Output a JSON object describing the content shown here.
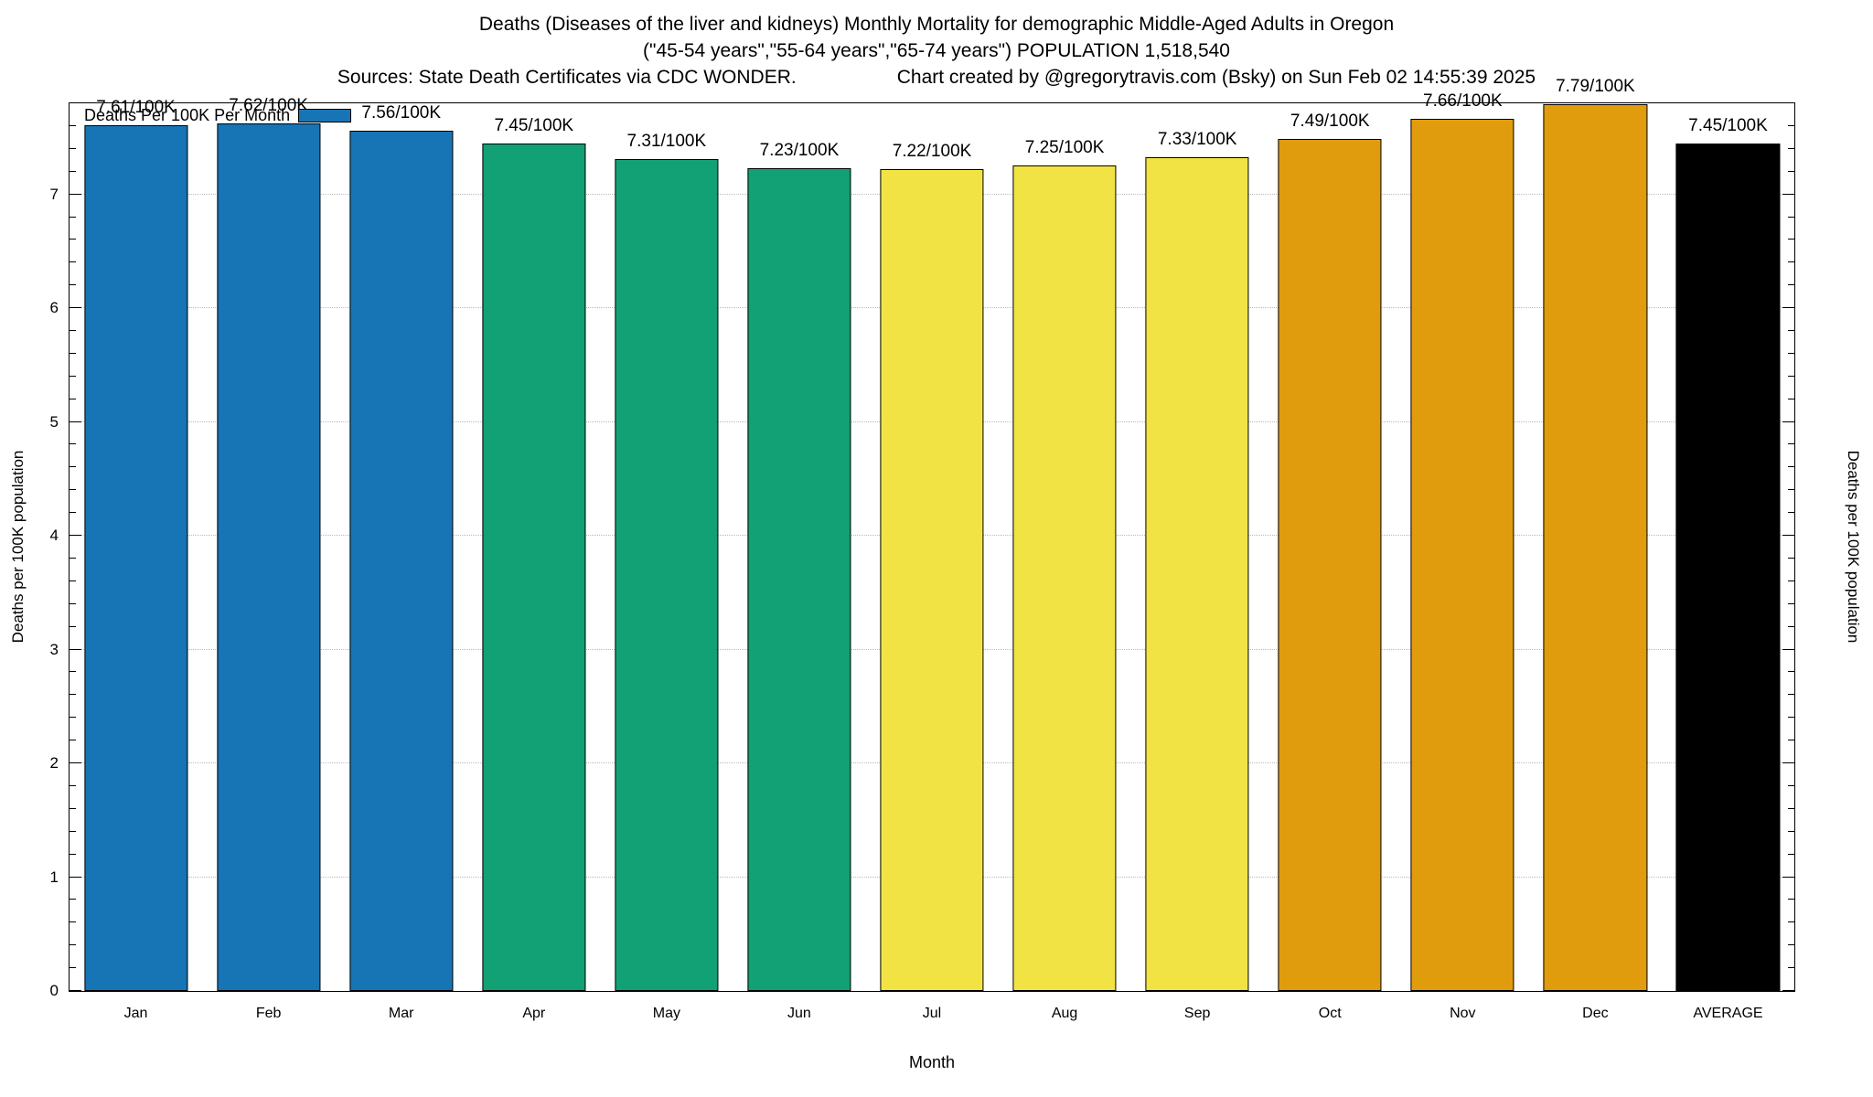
{
  "header": {
    "line1": "Deaths (Diseases of the liver and kidneys) Monthly Mortality for demographic Middle-Aged Adults in Oregon",
    "line2": "(\"45-54 years\",\"55-64 years\",\"65-74 years\") POPULATION 1,518,540",
    "sources": "Sources: State Death Certificates via CDC WONDER.",
    "credit": "Chart created by @gregorytravis.com (Bsky) on Sun Feb 02 14:55:39 2025"
  },
  "chart_data": {
    "type": "bar",
    "title": "Deaths (Diseases of the liver and kidneys) Monthly Mortality for demographic Middle-Aged Adults in Oregon",
    "categories": [
      "Jan",
      "Feb",
      "Mar",
      "Apr",
      "May",
      "Jun",
      "Jul",
      "Aug",
      "Sep",
      "Oct",
      "Nov",
      "Dec",
      "AVERAGE"
    ],
    "values": [
      7.61,
      7.62,
      7.56,
      7.45,
      7.31,
      7.23,
      7.22,
      7.25,
      7.33,
      7.49,
      7.66,
      7.79,
      7.45
    ],
    "bar_labels": [
      "7.61/100K",
      "7.62/100K",
      "7.56/100K",
      "7.45/100K",
      "7.31/100K",
      "7.23/100K",
      "7.22/100K",
      "7.25/100K",
      "7.33/100K",
      "7.49/100K",
      "7.66/100K",
      "7.79/100K",
      "7.45/100K"
    ],
    "bar_colors": [
      "#1774b5",
      "#1774b5",
      "#1774b5",
      "#12a075",
      "#12a075",
      "#12a075",
      "#f2e344",
      "#f2e344",
      "#f2e344",
      "#e09c0d",
      "#e09c0d",
      "#e09c0d",
      "#000000"
    ],
    "xlabel": "Month",
    "ylabel": "Deaths per 100K population",
    "ylabel_right": "Deaths per 100K population",
    "yticks": [
      0,
      1,
      2,
      3,
      4,
      5,
      6,
      7
    ],
    "minor_tick_step": 0.2,
    "ylim": [
      0,
      7.8
    ],
    "grid": true,
    "legend": {
      "label": "Deaths Per 100K Per Month",
      "swatch_color": "#1774b5",
      "position": "top-left"
    }
  }
}
